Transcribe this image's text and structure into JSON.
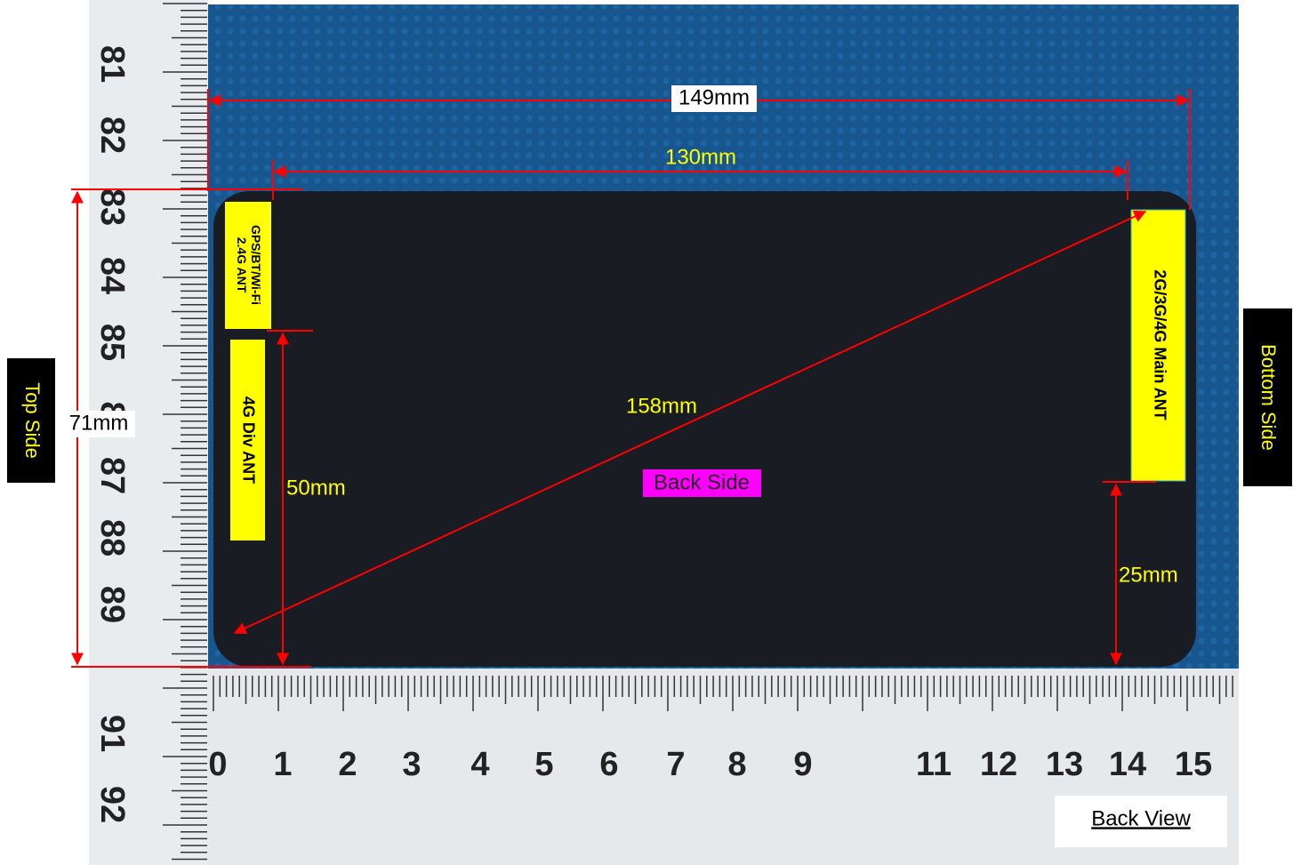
{
  "dimensions": {
    "overall_length": "149mm",
    "body_length": "130mm",
    "diagonal": "158mm",
    "width": "71mm",
    "div_ant_height": "50mm",
    "main_ant_gap": "25mm"
  },
  "labels": {
    "view": "Back Side",
    "top": "Top Side",
    "bottom": "Bottom Side",
    "caption": "Back View"
  },
  "antennas": [
    {
      "lines": [
        "GPS/BT/Wi-Fi",
        "2.4G ANT"
      ]
    },
    {
      "lines": [
        "4G Div ANT"
      ]
    },
    {
      "lines": [
        "2G/3G/4G Main ANT"
      ]
    }
  ],
  "ruler": {
    "vertical": [
      "81",
      "82",
      "83",
      "84",
      "85",
      "8",
      "87",
      "88",
      "89",
      "91",
      "92"
    ],
    "horizontal": [
      "0",
      "1",
      "2",
      "3",
      "4",
      "5",
      "6",
      "7",
      "8",
      "9",
      "11",
      "12",
      "13",
      "14",
      "15"
    ]
  }
}
